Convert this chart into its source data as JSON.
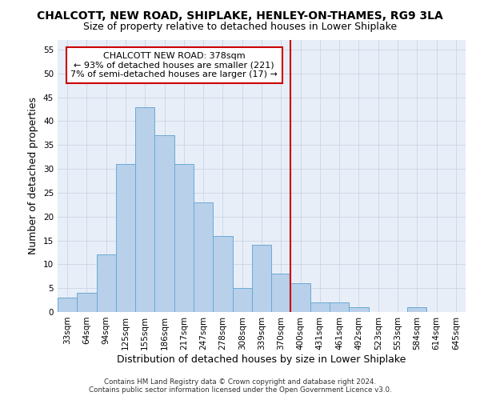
{
  "title": "CHALCOTT, NEW ROAD, SHIPLAKE, HENLEY-ON-THAMES, RG9 3LA",
  "subtitle": "Size of property relative to detached houses in Lower Shiplake",
  "xlabel": "Distribution of detached houses by size in Lower Shiplake",
  "ylabel": "Number of detached properties",
  "footer_line1": "Contains HM Land Registry data © Crown copyright and database right 2024.",
  "footer_line2": "Contains public sector information licensed under the Open Government Licence v3.0.",
  "categories": [
    "33sqm",
    "64sqm",
    "94sqm",
    "125sqm",
    "155sqm",
    "186sqm",
    "217sqm",
    "247sqm",
    "278sqm",
    "308sqm",
    "339sqm",
    "370sqm",
    "400sqm",
    "431sqm",
    "461sqm",
    "492sqm",
    "523sqm",
    "553sqm",
    "584sqm",
    "614sqm",
    "645sqm"
  ],
  "values": [
    3,
    4,
    12,
    31,
    43,
    37,
    31,
    23,
    16,
    5,
    14,
    8,
    6,
    2,
    2,
    1,
    0,
    0,
    1,
    0,
    0
  ],
  "bar_color": "#b8d0ea",
  "bar_edgecolor": "#6aaad4",
  "bar_linewidth": 0.7,
  "ref_line_color": "#cc0000",
  "annotation_box_color": "#cc0000",
  "ref_line_label": "CHALCOTT NEW ROAD: 378sqm",
  "ref_line_smaller": "← 93% of detached houses are smaller (221)",
  "ref_line_larger": "7% of semi-detached houses are larger (17) →",
  "ylim": [
    0,
    57
  ],
  "yticks": [
    0,
    5,
    10,
    15,
    20,
    25,
    30,
    35,
    40,
    45,
    50,
    55
  ],
  "grid_color": "#c8d4e4",
  "background_color": "#e8eef8",
  "title_fontsize": 10,
  "subtitle_fontsize": 9,
  "xlabel_fontsize": 9,
  "ylabel_fontsize": 9,
  "tick_fontsize": 7.5,
  "annotation_fontsize": 8
}
